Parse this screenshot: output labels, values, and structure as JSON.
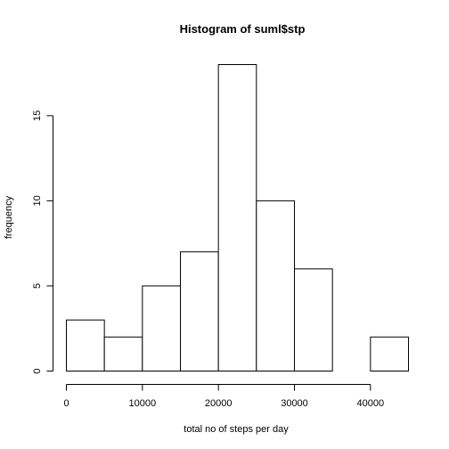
{
  "chart_data": {
    "type": "bar",
    "title": "Histogram of suml$stp",
    "xlabel": "total no of steps per day",
    "ylabel": "frequency",
    "bin_edges": [
      0,
      5000,
      10000,
      15000,
      20000,
      25000,
      30000,
      35000,
      40000,
      45000
    ],
    "counts": [
      3,
      2,
      5,
      7,
      18,
      10,
      6,
      0,
      2
    ],
    "xlim": [
      0,
      45000
    ],
    "ylim": [
      0,
      18
    ],
    "x_ticks": [
      0,
      10000,
      20000,
      30000,
      40000
    ],
    "x_tick_labels": [
      "0",
      "10000",
      "20000",
      "30000",
      "40000"
    ],
    "y_ticks": [
      0,
      5,
      10,
      15
    ],
    "y_tick_labels": [
      "0",
      "5",
      "10",
      "15"
    ],
    "grid": false,
    "legend": "none",
    "bar_fill": "#ffffff",
    "bar_stroke": "#000000"
  }
}
